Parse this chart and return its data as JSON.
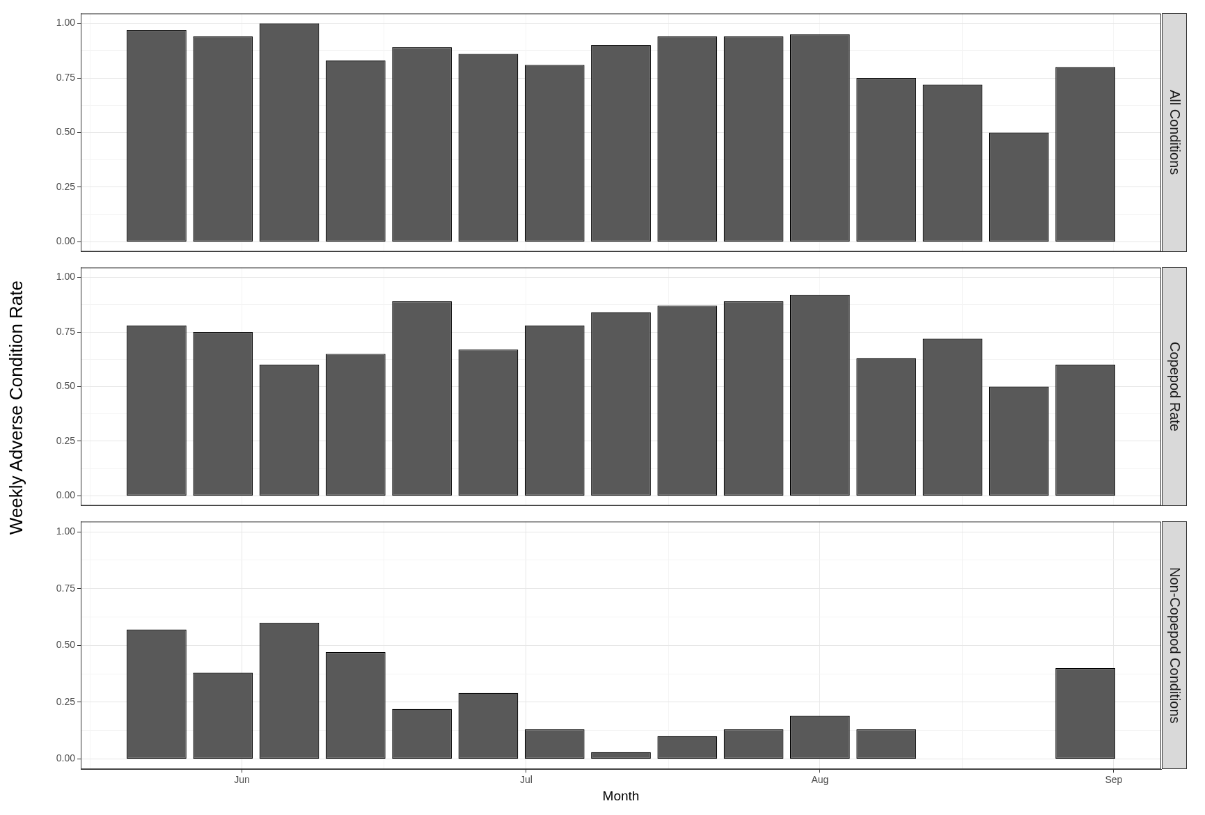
{
  "chart_data": [
    {
      "type": "bar",
      "title": "All Conditions",
      "ylabel": "Weekly Adverse Condition Rate",
      "x": [
        "--05-23",
        "--05-30",
        "--06-06",
        "--06-13",
        "--06-20",
        "--06-27",
        "--07-04",
        "--07-11",
        "--07-18",
        "--07-25",
        "--08-01",
        "--08-08",
        "--08-15",
        "--08-22",
        "--08-29"
      ],
      "values": [
        0.97,
        0.94,
        1.0,
        0.83,
        0.89,
        0.86,
        0.81,
        0.9,
        0.94,
        0.94,
        0.95,
        0.75,
        0.72,
        0.5,
        0.8
      ],
      "color": "#595959",
      "xlim": [
        "--05-15",
        "--09-06"
      ],
      "xticks": [
        "--05-16",
        "--06-01",
        "--06-16",
        "--07-01",
        "--07-16",
        "--08-01",
        "--08-16",
        "--09-01"
      ],
      "ylim": [
        -0.045,
        1.045
      ],
      "yticks": [
        {
          "value": 0,
          "label": "0.00"
        },
        {
          "value": 0.125,
          "label": null
        },
        {
          "value": 0.25,
          "label": "0.25"
        },
        {
          "value": 0.375,
          "label": null
        },
        {
          "value": 0.5,
          "label": "0.50"
        },
        {
          "value": 0.625,
          "label": null
        },
        {
          "value": 0.75,
          "label": "0.75"
        },
        {
          "value": 0.875,
          "label": null
        },
        {
          "value": 1,
          "label": "1.00"
        }
      ],
      "grid": true,
      "tick_labels": "y"
    },
    {
      "type": "bar",
      "title": "Copepod Rate",
      "x": [
        "--05-23",
        "--05-30",
        "--06-06",
        "--06-13",
        "--06-20",
        "--06-27",
        "--07-04",
        "--07-11",
        "--07-18",
        "--07-25",
        "--08-01",
        "--08-08",
        "--08-15",
        "--08-22",
        "--08-29"
      ],
      "values": [
        0.78,
        0.75,
        0.6,
        0.65,
        0.89,
        0.67,
        0.78,
        0.84,
        0.87,
        0.89,
        0.92,
        0.63,
        0.72,
        0.5,
        0.6
      ],
      "color": "#595959",
      "xlim": [
        "--05-15",
        "--09-06"
      ],
      "xticks": [
        "--05-16",
        "--06-01",
        "--06-16",
        "--07-01",
        "--07-16",
        "--08-01",
        "--08-16",
        "--09-01"
      ],
      "ylim": [
        -0.045,
        1.045
      ],
      "yticks": [
        {
          "value": 0,
          "label": "0.00"
        },
        {
          "value": 0.125,
          "label": null
        },
        {
          "value": 0.25,
          "label": "0.25"
        },
        {
          "value": 0.375,
          "label": null
        },
        {
          "value": 0.5,
          "label": "0.50"
        },
        {
          "value": 0.625,
          "label": null
        },
        {
          "value": 0.75,
          "label": "0.75"
        },
        {
          "value": 0.875,
          "label": null
        },
        {
          "value": 1,
          "label": "1.00"
        }
      ],
      "grid": true,
      "tick_labels": "y"
    },
    {
      "type": "bar",
      "title": "Non-Copepod Conditions",
      "xlabel": "Month",
      "x": [
        "--05-23",
        "--05-30",
        "--06-06",
        "--06-13",
        "--06-20",
        "--06-27",
        "--07-04",
        "--07-11",
        "--07-18",
        "--07-25",
        "--08-01",
        "--08-08",
        "--08-15",
        "--08-22",
        "--08-29"
      ],
      "values": [
        0.57,
        0.38,
        0.6,
        0.47,
        0.22,
        0.29,
        0.13,
        0.03,
        0.1,
        0.13,
        0.19,
        0.13,
        0,
        0,
        0.4
      ],
      "color": "#595959",
      "xlim": [
        "--05-15",
        "--09-06"
      ],
      "xticks": [
        {
          "value": "--05-16",
          "label": null
        },
        {
          "value": "--06-01",
          "label": "Jun"
        },
        {
          "value": "--06-16",
          "label": null
        },
        {
          "value": "--07-01",
          "label": "Jul"
        },
        {
          "value": "--07-16",
          "label": null
        },
        {
          "value": "--08-01",
          "label": "Aug"
        },
        {
          "value": "--08-16",
          "label": null
        },
        {
          "value": "--09-01",
          "label": "Sep"
        }
      ],
      "ylim": [
        -0.045,
        1.045
      ],
      "yticks": [
        {
          "value": 0,
          "label": "0.00"
        },
        {
          "value": 0.125,
          "label": null
        },
        {
          "value": 0.25,
          "label": "0.25"
        },
        {
          "value": 0.375,
          "label": null
        },
        {
          "value": 0.5,
          "label": "0.50"
        },
        {
          "value": 0.625,
          "label": null
        },
        {
          "value": 0.75,
          "label": "0.75"
        },
        {
          "value": 0.875,
          "label": null
        },
        {
          "value": 1,
          "label": "1.00"
        }
      ],
      "grid": true
    }
  ]
}
